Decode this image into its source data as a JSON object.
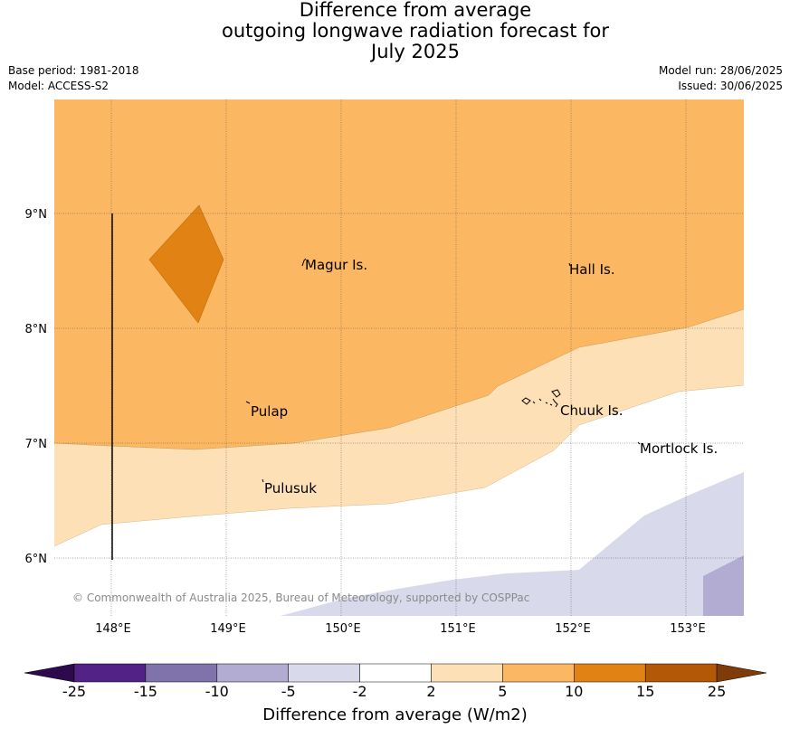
{
  "title": {
    "line1": "Difference from average",
    "line2": "outgoing longwave radiation forecast for",
    "line3": "July 2025"
  },
  "meta": {
    "base_period": "Base period: 1981-2018",
    "model": "Model: ACCESS-S2",
    "model_run": "Model run: 28/06/2025",
    "issued": "Issued: 30/06/2025"
  },
  "map": {
    "lon_ticks": [
      "148°E",
      "149°E",
      "150°E",
      "151°E",
      "152°E",
      "153°E"
    ],
    "lat_ticks": [
      "9°N",
      "8°N",
      "7°N",
      "6°N"
    ],
    "places": [
      "Magur Is.",
      "Hall Is.",
      "Pulap",
      "Chuuk Is.",
      "Mortlock Is.",
      "Pulusuk"
    ],
    "copyright": "© Commonwealth of Australia 2025, Bureau of Meteorology, supported by COSPPac"
  },
  "colorbar": {
    "title": "Difference from average (W/m2)",
    "labels": [
      "-25",
      "-15",
      "-10",
      "-5",
      "-2",
      "2",
      "5",
      "10",
      "15",
      "25"
    ],
    "colors": [
      "#2d0a4e",
      "#532286",
      "#8073ac",
      "#b2abd2",
      "#d8daeb",
      "#ffffff",
      "#fee0b6",
      "#fbb762",
      "#e08214",
      "#b35806",
      "#7f3b08"
    ]
  }
}
